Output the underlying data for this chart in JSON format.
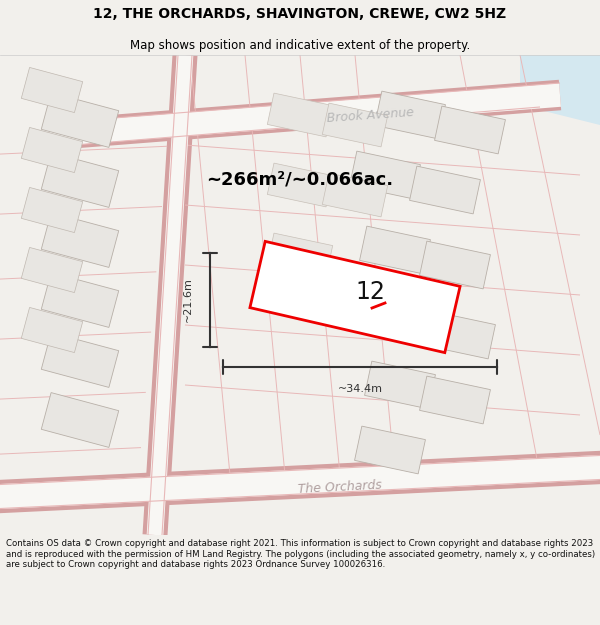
{
  "title": "12, THE ORCHARDS, SHAVINGTON, CREWE, CW2 5HZ",
  "subtitle": "Map shows position and indicative extent of the property.",
  "area_text": "~266m²/~0.066ac.",
  "label_number": "12",
  "dim_width": "~34.4m",
  "dim_height": "~21.6m",
  "footer": "Contains OS data © Crown copyright and database right 2021. This information is subject to Crown copyright and database rights 2023 and is reproduced with the permission of HM Land Registry. The polygons (including the associated geometry, namely x, y co-ordinates) are subject to Crown copyright and database rights 2023 Ordnance Survey 100026316.",
  "bg_color": "#f2f0ec",
  "map_bg": "#f8f7f4",
  "road_line_color": "#e8b8b8",
  "road_outline_color": "#d4a0a0",
  "building_fill": "#e8e6e2",
  "building_stroke": "#b8b0a8",
  "building_inner_stroke": "#c8c0b8",
  "highlight_color": "#ee0000",
  "dim_color": "#333333",
  "title_color": "#000000",
  "footer_color": "#111111",
  "street_label_color": "#b0a0a0",
  "brook_label_color": "#b8b8b8",
  "area_color": "#000000",
  "water_color": "#d4e8f0",
  "gray_road_color": "#c8c8c8"
}
